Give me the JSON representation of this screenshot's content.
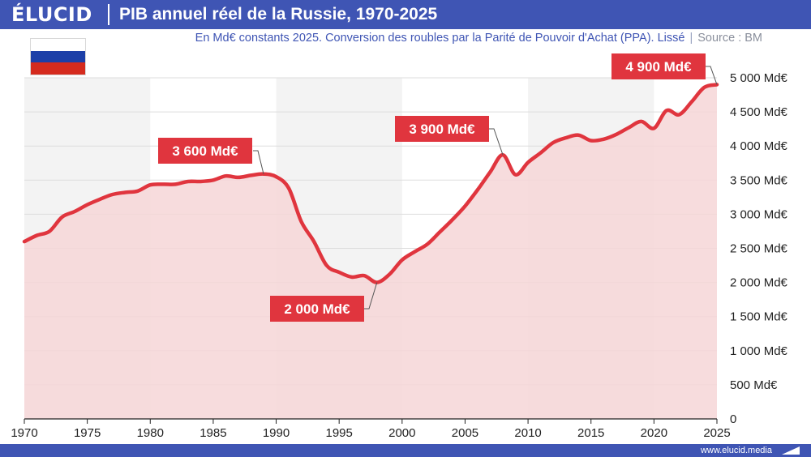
{
  "header": {
    "brand": "ÉLUCID",
    "title": "PIB annuel réel de la Russie, 1970-2025"
  },
  "subtitle": {
    "text": "En Md€ constants 2025. Conversion des roubles par la Parité de Pouvoir d'Achat (PPA). Lissé",
    "source": "Source : BM"
  },
  "footer": {
    "url": "www.elucid.media"
  },
  "flag": {
    "colors": [
      "#ffffff",
      "#1c3fa8",
      "#d52b1e"
    ]
  },
  "colors": {
    "brand": "#3f55b4",
    "line": "#e0353e",
    "area": "#f6d6d7",
    "band": "#f3f3f3"
  },
  "chart_data": {
    "type": "area",
    "title": "PIB annuel réel de la Russie, 1970-2025",
    "xlim": [
      1970,
      2025
    ],
    "ylim": [
      0,
      5000
    ],
    "x_ticks": [
      1970,
      1975,
      1980,
      1985,
      1990,
      1995,
      2000,
      2005,
      2010,
      2015,
      2020,
      2025
    ],
    "x_tick_labels": [
      "1970",
      "1975",
      "1980",
      "1985",
      "1990",
      "1995",
      "2000",
      "2005",
      "2010",
      "2015",
      "2020",
      "2025"
    ],
    "y_ticks": [
      0,
      500,
      1000,
      1500,
      2000,
      2500,
      3000,
      3500,
      4000,
      4500,
      5000
    ],
    "y_tick_labels": [
      "0",
      "500 Md€",
      "1 000 Md€",
      "1 500 Md€",
      "2 000 Md€",
      "2 500 Md€",
      "3 000 Md€",
      "3 500 Md€",
      "4 000 Md€",
      "4 500 Md€",
      "5 000 Md€"
    ],
    "grid": true,
    "series": [
      {
        "x": [
          1970,
          1971,
          1972,
          1973,
          1974,
          1975,
          1976,
          1977,
          1978,
          1979,
          1980,
          1981,
          1982,
          1983,
          1984,
          1985,
          1986,
          1987,
          1988,
          1989,
          1990,
          1991,
          1992,
          1993,
          1994,
          1995,
          1996,
          1997,
          1998,
          1999,
          2000,
          2001,
          2002,
          2003,
          2004,
          2005,
          2006,
          2007,
          2008,
          2009,
          2010,
          2011,
          2012,
          2013,
          2014,
          2015,
          2016,
          2017,
          2018,
          2019,
          2020,
          2021,
          2022,
          2023,
          2024,
          2025
        ],
        "y": [
          2600,
          2690,
          2750,
          2960,
          3040,
          3140,
          3220,
          3290,
          3320,
          3340,
          3430,
          3440,
          3440,
          3480,
          3480,
          3500,
          3560,
          3540,
          3570,
          3590,
          3550,
          3380,
          2890,
          2600,
          2250,
          2150,
          2080,
          2100,
          2000,
          2120,
          2330,
          2450,
          2560,
          2740,
          2920,
          3120,
          3360,
          3620,
          3870,
          3580,
          3760,
          3900,
          4050,
          4120,
          4160,
          4080,
          4100,
          4170,
          4270,
          4360,
          4260,
          4520,
          4460,
          4650,
          4860,
          4900
        ]
      }
    ],
    "annotations": [
      {
        "label": "3 600 Md€",
        "x": 1989,
        "y": 3590
      },
      {
        "label": "2 000 Md€",
        "x": 1998,
        "y": 2000
      },
      {
        "label": "3 900 Md€",
        "x": 2008,
        "y": 3870
      },
      {
        "label": "4 900 Md€",
        "x": 2025,
        "y": 4900
      }
    ]
  }
}
